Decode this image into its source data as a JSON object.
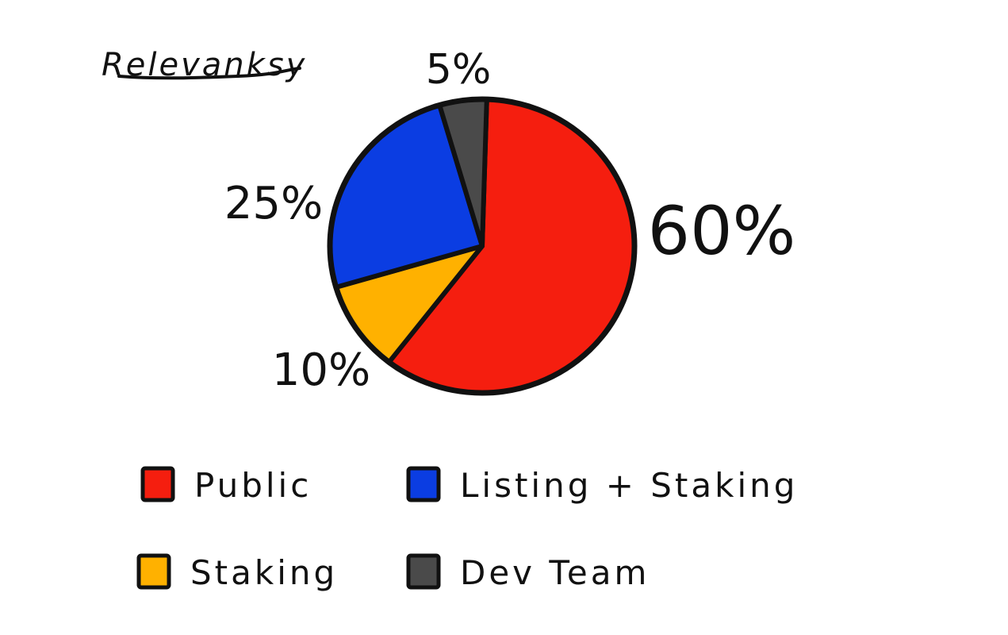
{
  "brand": {
    "logo_text": "Relevanksy"
  },
  "chart_data": {
    "type": "pie",
    "title": "",
    "slices": [
      {
        "label": "Public",
        "value": 60,
        "value_label": "60%",
        "color": "#F51E0F"
      },
      {
        "label": "Staking",
        "value": 10,
        "value_label": "10%",
        "color": "#FFB100"
      },
      {
        "label": "Listing + Staking",
        "value": 25,
        "value_label": "25%",
        "color": "#0B3DE2"
      },
      {
        "label": "Dev Team",
        "value": 5,
        "value_label": "5%",
        "color": "#4A4A4A"
      }
    ],
    "legend_placement": "bottom",
    "legend": [
      {
        "label": "Public",
        "color": "#F51E0F"
      },
      {
        "label": "Listing + Staking",
        "color": "#0B3DE2"
      },
      {
        "label": "Staking",
        "color": "#FFB100"
      },
      {
        "label": "Dev Team",
        "color": "#4A4A4A"
      }
    ]
  }
}
